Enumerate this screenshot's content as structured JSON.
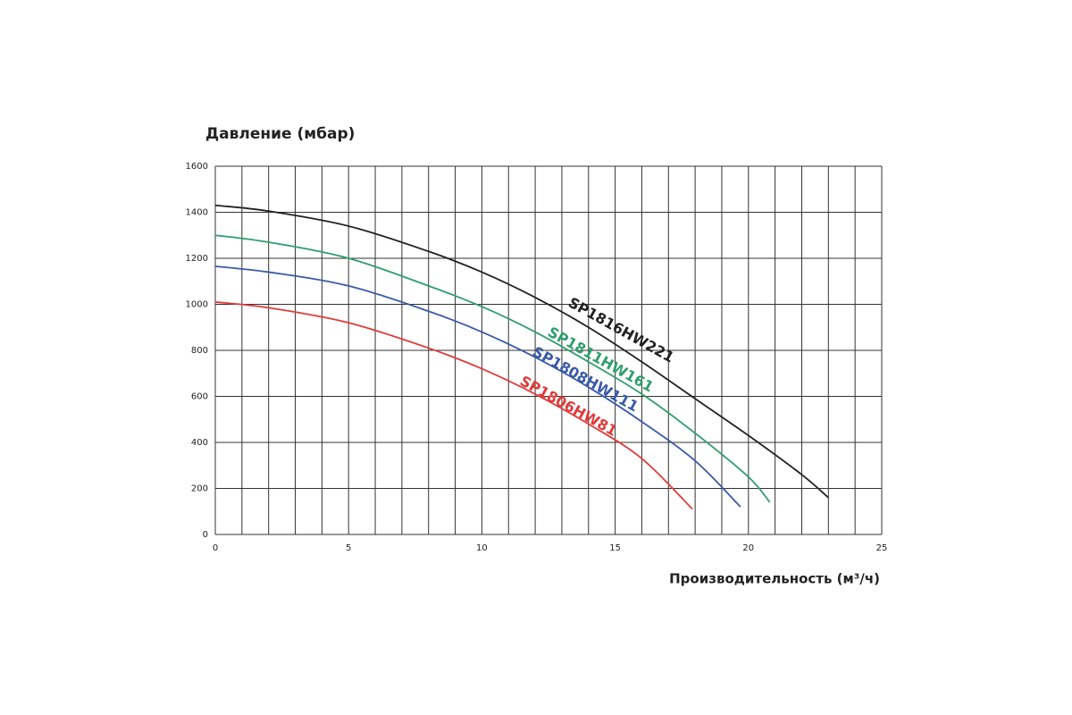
{
  "chart_data": {
    "type": "line",
    "y_label": "Давление (мбар)",
    "x_label": "Производительность (м³/ч)",
    "xlim": [
      0,
      25
    ],
    "xticks": [
      0,
      5,
      10,
      15,
      20,
      25
    ],
    "x_minor_ticks": [
      1,
      2,
      3,
      4,
      6,
      7,
      8,
      9,
      11,
      12,
      13,
      14,
      16,
      17,
      18,
      19,
      21,
      22,
      23,
      24
    ],
    "ylim": [
      0,
      1600
    ],
    "yticks": [
      0,
      200,
      400,
      600,
      800,
      1000,
      1200,
      1400,
      1600
    ],
    "grid": true,
    "series": [
      {
        "name": "SP1816HW221",
        "color": "#222222",
        "x": [
          0,
          2,
          5,
          8,
          10,
          12,
          14,
          16,
          18,
          20,
          22,
          23
        ],
        "values": [
          1430,
          1405,
          1340,
          1230,
          1140,
          1030,
          900,
          750,
          590,
          430,
          260,
          160
        ]
      },
      {
        "name": "SP1811HW161",
        "color": "#2e9e6e",
        "x": [
          0,
          2,
          5,
          8,
          10,
          12,
          14,
          16,
          18,
          20,
          20.8
        ],
        "values": [
          1300,
          1270,
          1200,
          1080,
          990,
          880,
          750,
          610,
          440,
          250,
          140
        ]
      },
      {
        "name": "SP1808HW111",
        "color": "#3a5aa8",
        "x": [
          0,
          2,
          5,
          8,
          10,
          12,
          14,
          16,
          18,
          19.7
        ],
        "values": [
          1165,
          1140,
          1080,
          970,
          880,
          770,
          640,
          490,
          320,
          120
        ]
      },
      {
        "name": "SP1806HW81",
        "color": "#e03a3a",
        "x": [
          0,
          2,
          5,
          8,
          10,
          12,
          14,
          16,
          17.9
        ],
        "values": [
          1010,
          985,
          920,
          810,
          720,
          610,
          480,
          330,
          110
        ]
      }
    ]
  }
}
